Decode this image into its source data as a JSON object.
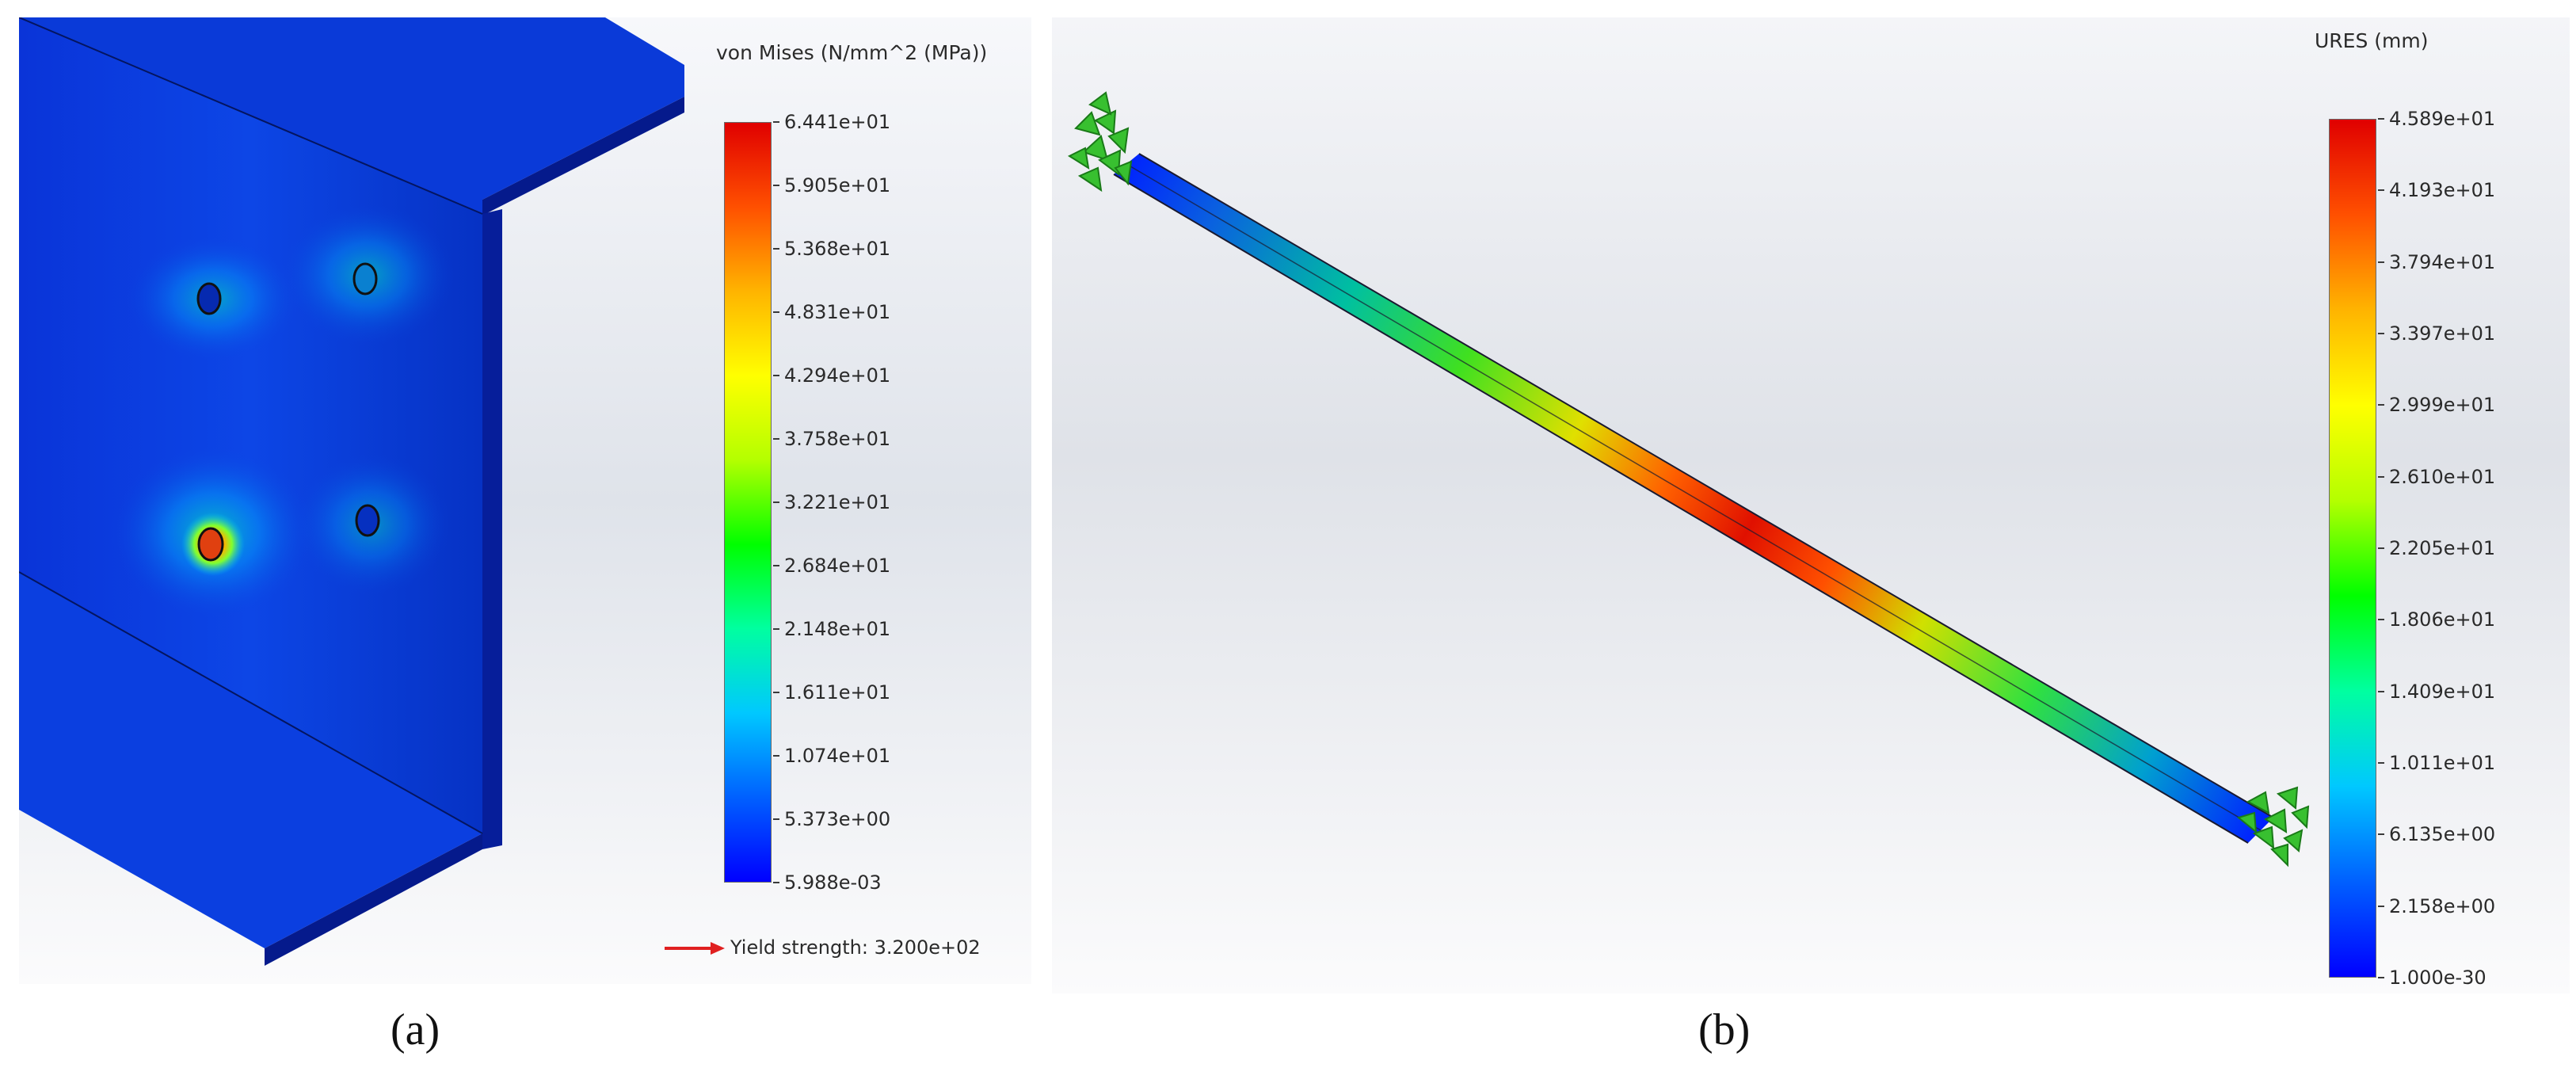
{
  "panel_a": {
    "legend_title": "von Mises (N/mm^2 (MPa))",
    "ticks": [
      "6.441e+01",
      "5.905e+01",
      "5.368e+01",
      "4.831e+01",
      "4.294e+01",
      "3.758e+01",
      "3.221e+01",
      "2.684e+01",
      "2.148e+01",
      "1.611e+01",
      "1.074e+01",
      "5.373e+00",
      "5.988e-03"
    ],
    "yield_label": "Yield strength: 3.200e+02",
    "caption": "(a)"
  },
  "panel_b": {
    "legend_title": "URES (mm)",
    "ticks": [
      "4.589e+01",
      "4.193e+01",
      "3.794e+01",
      "3.397e+01",
      "2.999e+01",
      "2.610e+01",
      "2.205e+01",
      "1.806e+01",
      "1.409e+01",
      "1.011e+01",
      "6.135e+00",
      "2.158e+00",
      "1.000e-30"
    ],
    "caption": "(b)"
  },
  "colormap": [
    "#0000ff",
    "#0060ff",
    "#00c8ff",
    "#00ffa0",
    "#00ff00",
    "#b4ff00",
    "#ffff00",
    "#ffb400",
    "#ff5000",
    "#e00000"
  ]
}
